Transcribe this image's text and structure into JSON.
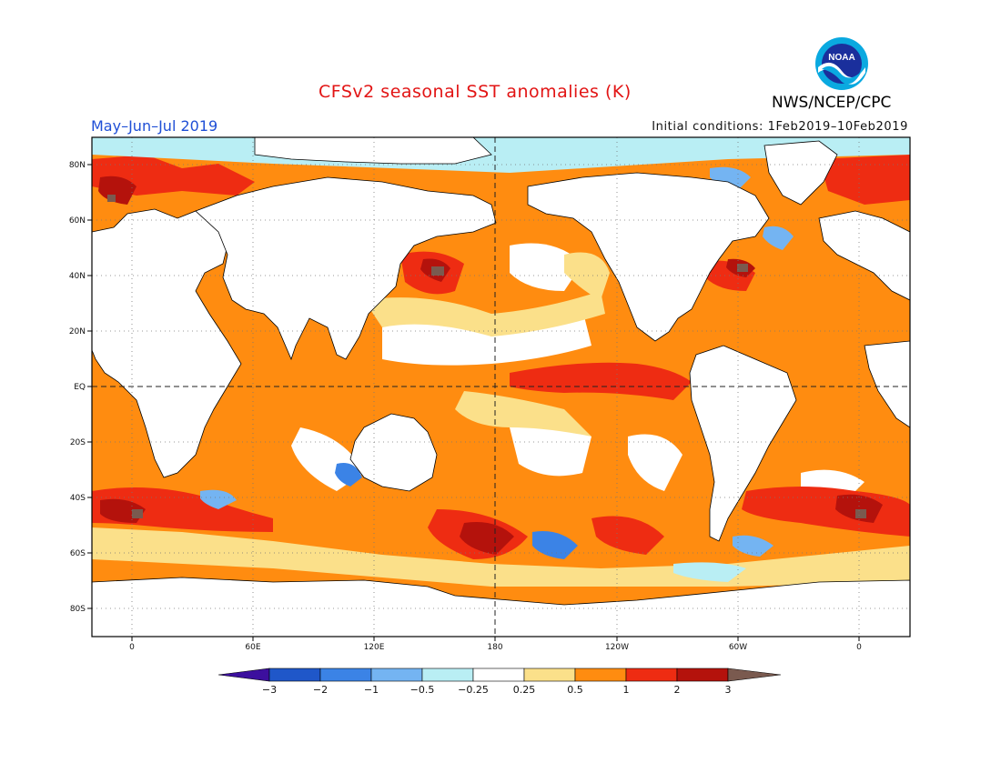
{
  "title": "CFSv2 seasonal SST anomalies (K)",
  "period": "May–Jun–Jul 2019",
  "initial_conditions": "Initial conditions: 1Feb2019–10Feb2019",
  "agency": "NWS/NCEP/CPC",
  "logo_text": "NOAA",
  "latitude_labels": [
    "80N",
    "60N",
    "40N",
    "20N",
    "EQ",
    "20S",
    "40S",
    "60S",
    "80S"
  ],
  "longitude_labels": [
    "0",
    "60E",
    "120E",
    "180",
    "120W",
    "60W",
    "0"
  ],
  "colorbar": {
    "tick_labels": [
      "−3",
      "−2",
      "−1",
      "−0.5",
      "−0.25",
      "0.25",
      "0.5",
      "1",
      "2",
      "3"
    ],
    "colors": [
      "#3c0f9e",
      "#1f57c9",
      "#3b83e6",
      "#74b4f2",
      "#b9eef4",
      "#ffffff",
      "#fbe08a",
      "#ff8c10",
      "#ee2c12",
      "#b4120c",
      "#7a5a4f"
    ]
  },
  "palette": {
    "title": "#e21414",
    "period": "#1f4fd6",
    "land": "#ffffff",
    "coast": "#000000"
  }
}
